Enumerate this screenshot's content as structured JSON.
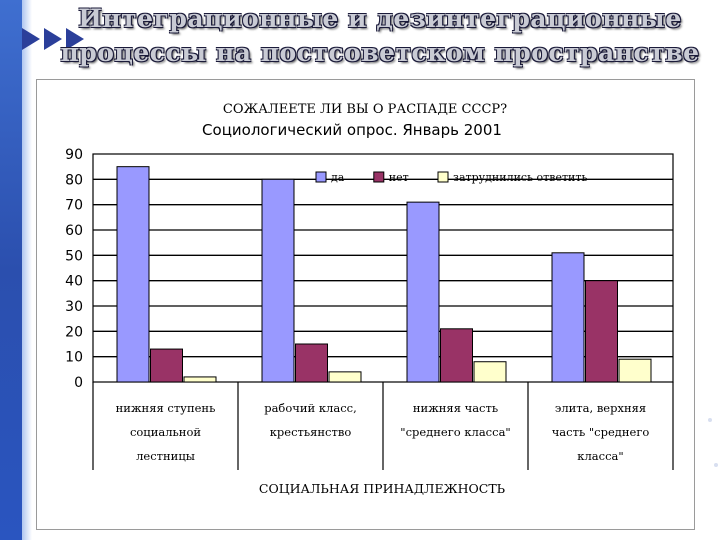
{
  "slide": {
    "title_line1": "Интеграционные и дезинтеграционные",
    "title_line2": "процессы на постсоветском пространстве"
  },
  "chart_data": {
    "type": "bar",
    "title": "СОЖАЛЕЕТЕ ЛИ ВЫ О РАСПАДЕ СССР?",
    "subtitle": "Социологический опрос. Январь 2001",
    "xlabel": "СОЦИАЛЬНАЯ ПРИНАДЛЕЖНОСТЬ",
    "ylabel": "",
    "ylim": [
      0,
      90
    ],
    "yticks": [
      "0",
      "10",
      "20",
      "30",
      "40",
      "50",
      "60",
      "70",
      "80",
      "90"
    ],
    "grid": true,
    "legend_position": "top-right",
    "categories": [
      [
        "нижняя ступень",
        "социальной",
        "лестницы"
      ],
      [
        "рабочий класс,",
        "крестьянство"
      ],
      [
        "нижняя часть",
        "\"среднего класса\""
      ],
      [
        "элита, верхняя",
        "часть \"среднего",
        "класса\""
      ]
    ],
    "series": [
      {
        "name": "да",
        "color": "#9999ff",
        "values": [
          85,
          80,
          71,
          51
        ]
      },
      {
        "name": "нет",
        "color": "#993366",
        "values": [
          13,
          15,
          21,
          40
        ]
      },
      {
        "name": "затруднились ответить",
        "color": "#ffffcc",
        "values": [
          2,
          4,
          8,
          9
        ]
      }
    ]
  }
}
